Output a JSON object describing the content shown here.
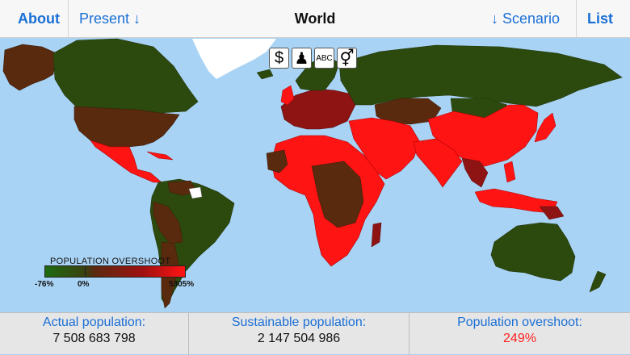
{
  "header": {
    "about_label": "About",
    "present_label": "Present ↓",
    "title": "World",
    "scenario_label": "↓ Scenario",
    "list_label": "List"
  },
  "toolbar_icons": [
    {
      "name": "dollar-icon",
      "glyph": "$"
    },
    {
      "name": "woman-icon",
      "glyph": "♟"
    },
    {
      "name": "abc-icon",
      "glyph": "ABC"
    },
    {
      "name": "gender-icon",
      "glyph": "⚥"
    }
  ],
  "legend": {
    "title": "POPULATION OVERSHOOT",
    "min_label": "-76%",
    "mid_label": "0%",
    "max_label": "5305%"
  },
  "stats": {
    "actual_label": "Actual population:",
    "actual_value": "7 508 683 798",
    "sustainable_label": "Sustainable population:",
    "sustainable_value": "2 147 504 986",
    "overshoot_label": "Population overshoot:",
    "overshoot_value": "249%"
  },
  "colors": {
    "ocean": "#a9d3f4",
    "green": "#2d4a0e",
    "brown": "#5a2a0e",
    "dark_red": "#8e1414",
    "red": "#ff1414",
    "accent": "#1a6fd6"
  }
}
